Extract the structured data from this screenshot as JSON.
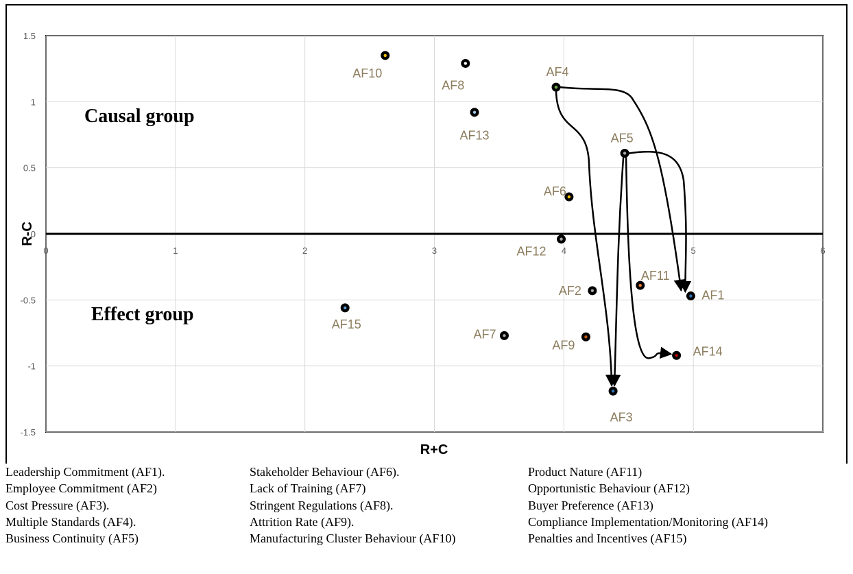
{
  "chart_data": {
    "type": "scatter",
    "xlabel": "R+C",
    "ylabel": "R-C",
    "xlim": [
      0,
      6
    ],
    "ylim": [
      -1.5,
      1.5
    ],
    "x_ticks": [
      "0",
      "1",
      "2",
      "3",
      "4",
      "5",
      "6"
    ],
    "y_ticks": [
      "1.5",
      "1",
      "0.5",
      "0",
      "-0.5",
      "-1",
      "-1.5"
    ],
    "grid": true,
    "group_labels": {
      "causal": "Causal group",
      "effect": "Effect group"
    },
    "points": [
      {
        "label": "AF1",
        "x": 4.98,
        "y": -0.47,
        "color": "#2e75b6"
      },
      {
        "label": "AF2",
        "x": 4.22,
        "y": -0.43,
        "color": "#a5a5a5"
      },
      {
        "label": "AF3",
        "x": 4.38,
        "y": -1.19,
        "color": "#2e75b6"
      },
      {
        "label": "AF4",
        "x": 3.94,
        "y": 1.11,
        "color": "#70ad47"
      },
      {
        "label": "AF5",
        "x": 4.47,
        "y": 0.61,
        "color": "#a5a5a5"
      },
      {
        "label": "AF6",
        "x": 4.04,
        "y": 0.28,
        "color": "#ffc000"
      },
      {
        "label": "AF7",
        "x": 3.54,
        "y": -0.77,
        "color": "#a5a5a5"
      },
      {
        "label": "AF8",
        "x": 3.24,
        "y": 1.29,
        "color": "#ffffff"
      },
      {
        "label": "AF9",
        "x": 4.17,
        "y": -0.78,
        "color": "#c55a11"
      },
      {
        "label": "AF10",
        "x": 2.62,
        "y": 1.35,
        "color": "#ffc000"
      },
      {
        "label": "AF11",
        "x": 4.59,
        "y": -0.39,
        "color": "#ed7d31"
      },
      {
        "label": "AF12",
        "x": 3.98,
        "y": -0.04,
        "color": "#a5a5a5"
      },
      {
        "label": "AF13",
        "x": 3.31,
        "y": 0.92,
        "color": "#9dc3e6"
      },
      {
        "label": "AF14",
        "x": 4.87,
        "y": -0.92,
        "color": "#c00000"
      },
      {
        "label": "AF15",
        "x": 2.31,
        "y": -0.56,
        "color": "#5b9bd5"
      }
    ],
    "arrows": [
      {
        "from": "AF4",
        "to": "AF1"
      },
      {
        "from": "AF4",
        "to": "AF3"
      },
      {
        "from": "AF5",
        "to": "AF1"
      },
      {
        "from": "AF5",
        "to": "AF3"
      },
      {
        "from": "AF5",
        "to": "AF14"
      }
    ]
  },
  "legend": {
    "col1": [
      "Leadership Commitment (AF1).",
      "Employee Commitment (AF2)",
      "Cost Pressure (AF3).",
      "Multiple Standards (AF4).",
      "Business Continuity (AF5)"
    ],
    "col2": [
      "Stakeholder Behaviour (AF6).",
      "Lack of Training (AF7)",
      "Stringent Regulations (AF8).",
      "Attrition Rate (AF9).",
      "Manufacturing Cluster Behaviour (AF10)"
    ],
    "col3": [
      "Product Nature (AF11)",
      "Opportunistic Behaviour (AF12)",
      "Buyer Preference (AF13)",
      "Compliance Implementation/Monitoring (AF14)",
      "Penalties and Incentives (AF15)"
    ]
  }
}
